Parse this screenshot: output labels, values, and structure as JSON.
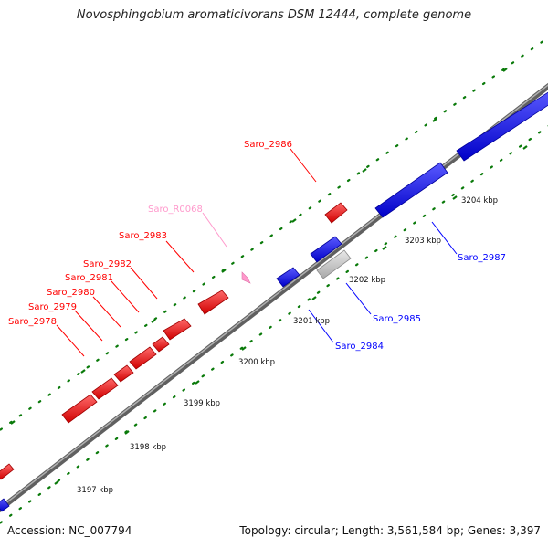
{
  "title": "Novosphingobium aromaticivorans DSM 12444, complete genome",
  "accession": "Accession: NC_007794",
  "summary": "Topology: circular; Length: 3,561,584 bp; Genes: 3,397",
  "colors": {
    "forward": "#ff0000",
    "reverse": "#0000ff",
    "rna": "#ff99cc",
    "pseudo": "#c8c8c8",
    "backbone": "#808080",
    "dots": "#0a7a0a"
  },
  "scale": {
    "ticks": [
      "3197 kbp",
      "3198 kbp",
      "3199 kbp",
      "3200 kbp",
      "3201 kbp",
      "3202 kbp",
      "3203 kbp",
      "3204 kbp"
    ]
  },
  "genes": {
    "forward": [
      "Saro_2978",
      "Saro_2979",
      "Saro_2980",
      "Saro_2981",
      "Saro_2982",
      "Saro_2983",
      "Saro_R0068",
      "Saro_2986"
    ],
    "reverse": [
      "Saro_2984",
      "Saro_2985",
      "Saro_2987"
    ]
  }
}
